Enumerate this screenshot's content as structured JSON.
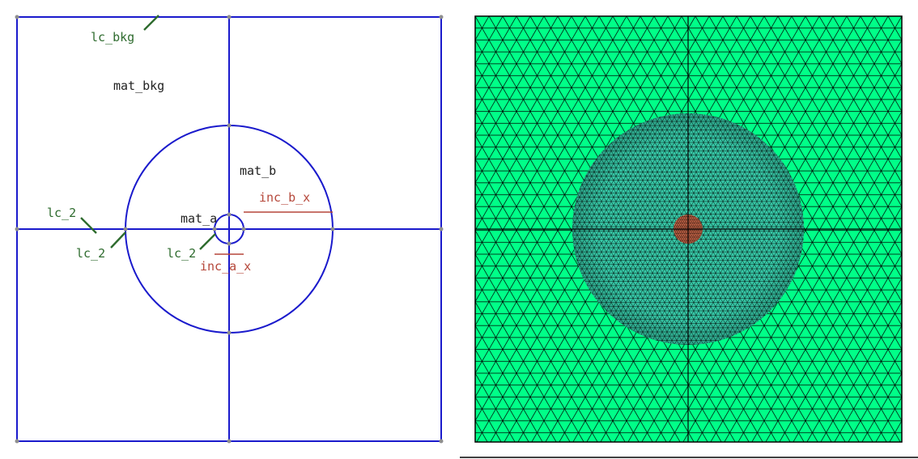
{
  "geometry_panel": {
    "labels": {
      "lc_bkg": "lc_bkg",
      "mat_bkg": "mat_bkg",
      "mat_b": "mat_b",
      "mat_a": "mat_a",
      "inc_b_x": "inc_b_x",
      "inc_a_x": "inc_a_x",
      "lc_2_left": "lc_2",
      "lc_2_outer": "lc_2",
      "lc_2_inner": "lc_2"
    },
    "colors": {
      "geometry_line": "#1a1acc",
      "lc_label": "#2e6b2e",
      "inc_label": "#b5473a",
      "mat_label": "#222222",
      "node": "#8f8f8f"
    }
  },
  "mesh_panel": {
    "colors": {
      "background_material": "#00ff88",
      "inclusion_b_material": "#36c7a6",
      "inclusion_a_material": "#e07250",
      "mesh_line": "#000000"
    },
    "refinement": {
      "background": "coarse",
      "inclusion_b": "fine",
      "inclusion_a": "finest"
    }
  }
}
